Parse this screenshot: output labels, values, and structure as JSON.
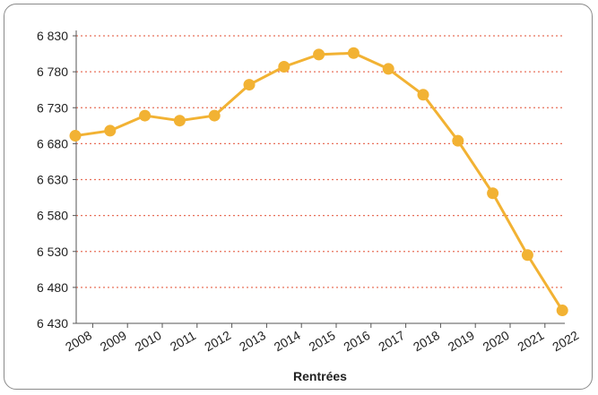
{
  "chart_data": {
    "type": "line",
    "title": "",
    "xlabel": "Rentrées",
    "ylabel": "",
    "x": [
      "2008",
      "2009",
      "2010",
      "2011",
      "2012",
      "2013",
      "2014",
      "2015",
      "2016",
      "2017",
      "2018",
      "2019",
      "2020",
      "2021",
      "2022"
    ],
    "series": [
      {
        "values": [
          6691,
          6698,
          6719,
          6712,
          6719,
          6762,
          6787,
          6804,
          6806,
          6784,
          6748,
          6684,
          6611,
          6525,
          6448
        ]
      }
    ],
    "ylim": [
      6430,
      6830
    ],
    "yticks": [
      6430,
      6480,
      6530,
      6580,
      6630,
      6680,
      6730,
      6780,
      6830
    ],
    "ytick_labels": [
      "6 430",
      "6 480",
      "6 530",
      "6 580",
      "6 630",
      "6 680",
      "6 730",
      "6 780",
      "6 830"
    ],
    "grid": true,
    "legend": "none",
    "colors": {
      "line": "#F2B233",
      "marker": "#F2B233",
      "grid": "#E8705A",
      "axis": "#555555"
    }
  }
}
